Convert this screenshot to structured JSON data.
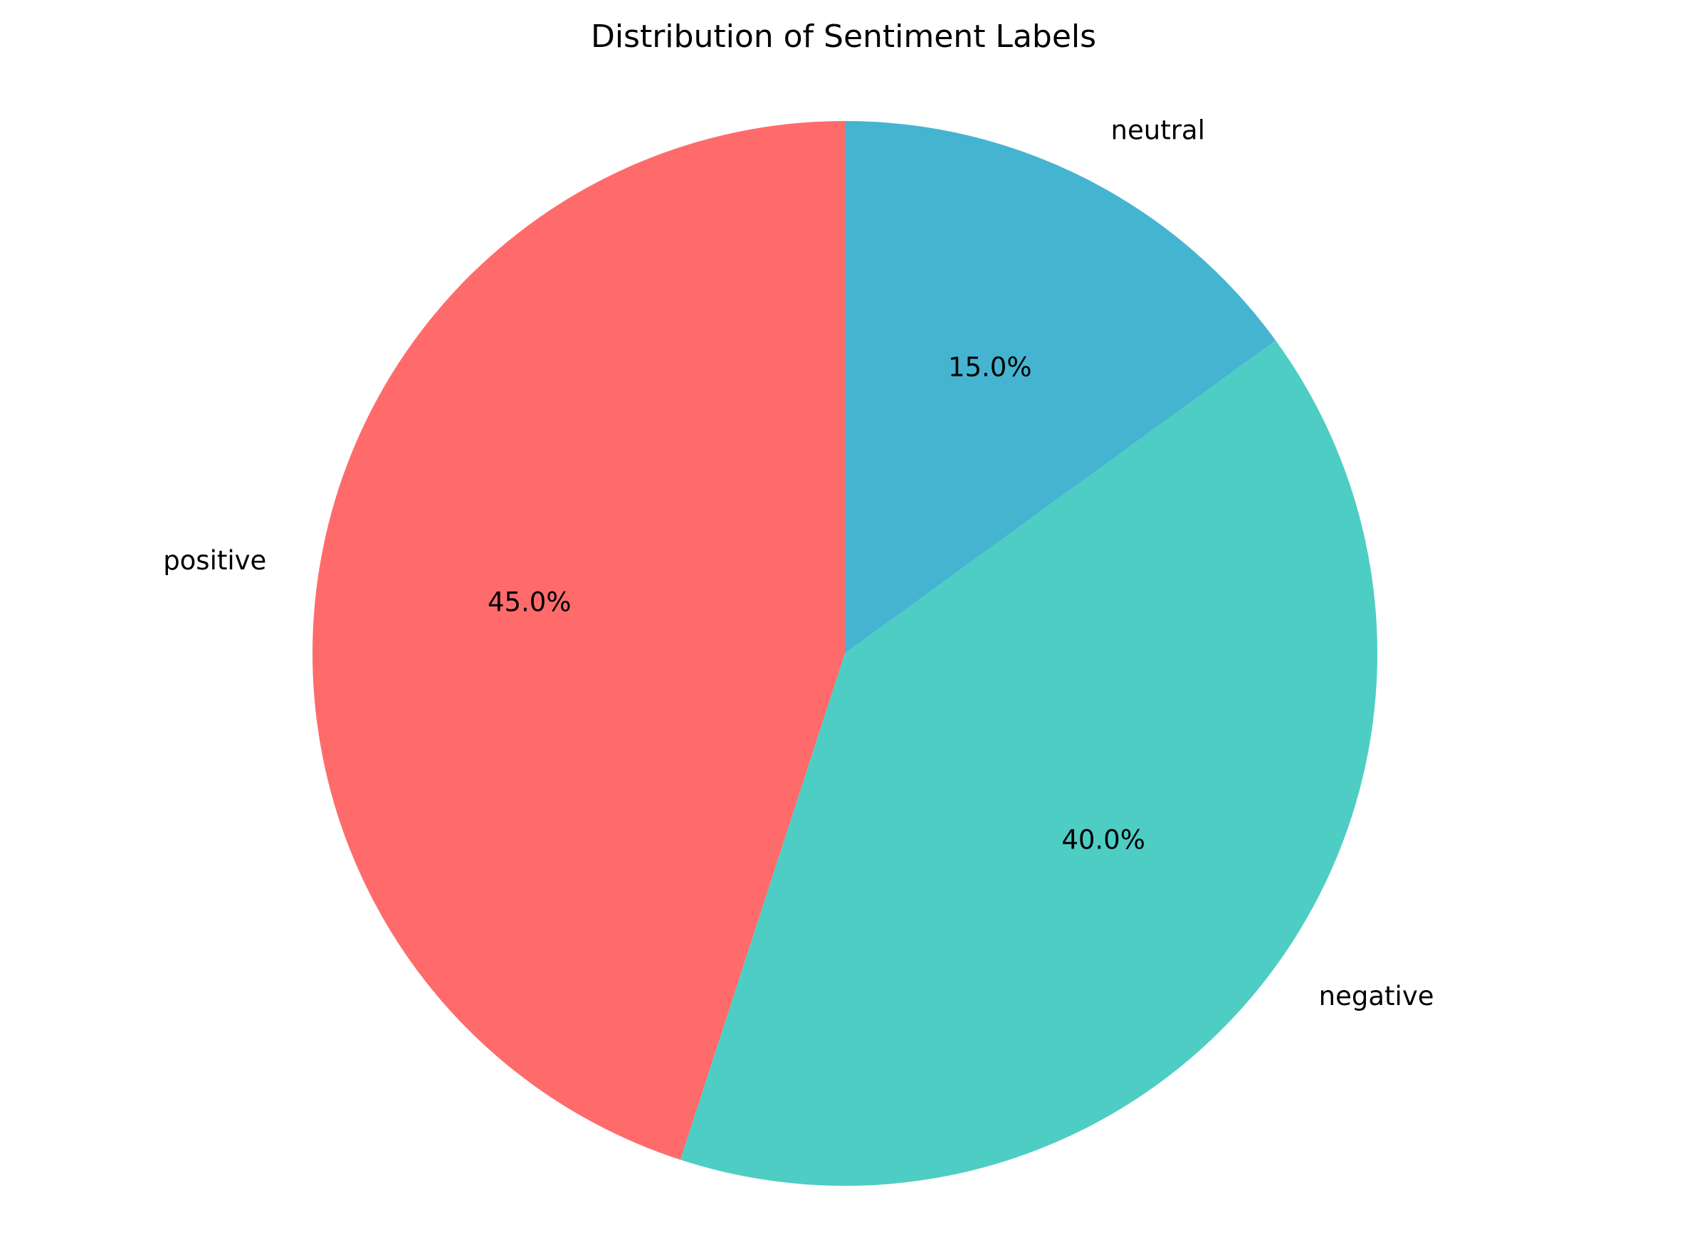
{
  "chart_data": {
    "type": "pie",
    "title": "Distribution of Sentiment Labels",
    "labels": [
      "positive",
      "negative",
      "neutral"
    ],
    "values": [
      45.0,
      40.0,
      15.0
    ],
    "value_labels": [
      "45.0%",
      "40.0%",
      "15.0%"
    ],
    "colors": [
      "#ff6b6b",
      "#4ecdc4",
      "#45b4d1"
    ],
    "start_angle_deg": 90,
    "direction": "counterclockwise"
  }
}
